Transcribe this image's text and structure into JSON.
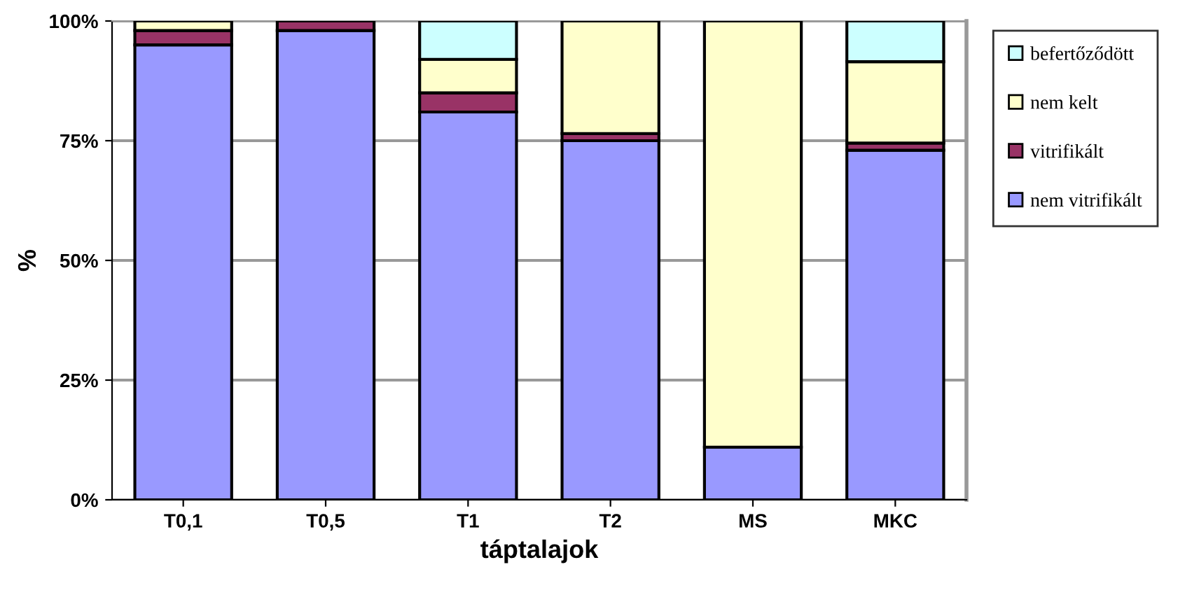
{
  "chart_data": {
    "type": "bar",
    "stacked": true,
    "xlabel": "táptalajok",
    "ylabel": "%",
    "categories": [
      "T0,1",
      "T0,5",
      "T1",
      "T2",
      "MS",
      "MKC"
    ],
    "series": [
      {
        "name": "nem vitrifikált",
        "color": "#9999ff",
        "values": [
          95,
          98,
          81,
          75,
          11,
          73
        ]
      },
      {
        "name": "vitrifikált",
        "color": "#993366",
        "values": [
          3,
          2,
          4,
          1.5,
          0,
          1.5
        ]
      },
      {
        "name": "nem kelt",
        "color": "#ffffcc",
        "values": [
          2,
          0,
          7,
          23.5,
          89,
          17
        ]
      },
      {
        "name": "befertőződött",
        "color": "#ccffff",
        "values": [
          0,
          0,
          8,
          0,
          0,
          8.5
        ]
      }
    ],
    "ylim": [
      0,
      100
    ],
    "yticks": [
      {
        "value": 0,
        "label": "0%"
      },
      {
        "value": 25,
        "label": "25%"
      },
      {
        "value": 50,
        "label": "50%"
      },
      {
        "value": 75,
        "label": "75%"
      },
      {
        "value": 100,
        "label": "100%"
      }
    ],
    "grid": "y",
    "legend": "right"
  }
}
